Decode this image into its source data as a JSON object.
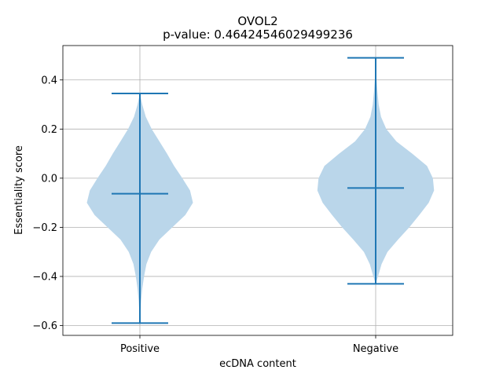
{
  "chart_data": {
    "type": "violin",
    "title": "OVOL2",
    "subtitle": "p-value: 0.46424546029499236",
    "xlabel": "ecDNA content",
    "ylabel": "Essentiality score",
    "categories": [
      "Positive",
      "Negative"
    ],
    "ylim": [
      -0.64,
      0.54
    ],
    "yticks": [
      -0.6,
      -0.4,
      -0.2,
      0.0,
      0.2,
      0.4
    ],
    "ytick_labels": [
      "−0.6",
      "−0.4",
      "−0.2",
      "0.0",
      "0.2",
      "0.4"
    ],
    "grid": true,
    "colors": {
      "body": "#bad6ea",
      "lines": "#1f77b4"
    },
    "violins": [
      {
        "category": "Positive",
        "min": -0.59,
        "max": 0.345,
        "median": -0.063,
        "density": [
          [
            -0.59,
            0.0
          ],
          [
            -0.55,
            0.01
          ],
          [
            -0.5,
            0.02
          ],
          [
            -0.45,
            0.04
          ],
          [
            -0.4,
            0.07
          ],
          [
            -0.35,
            0.11
          ],
          [
            -0.3,
            0.19
          ],
          [
            -0.25,
            0.33
          ],
          [
            -0.2,
            0.55
          ],
          [
            -0.15,
            0.77
          ],
          [
            -0.1,
            0.9
          ],
          [
            -0.05,
            0.85
          ],
          [
            0.0,
            0.72
          ],
          [
            0.05,
            0.58
          ],
          [
            0.1,
            0.46
          ],
          [
            0.15,
            0.33
          ],
          [
            0.2,
            0.2
          ],
          [
            0.25,
            0.1
          ],
          [
            0.3,
            0.04
          ],
          [
            0.345,
            0.0
          ]
        ]
      },
      {
        "category": "Negative",
        "min": -0.43,
        "max": 0.49,
        "median": -0.04,
        "density": [
          [
            -0.43,
            0.0
          ],
          [
            -0.4,
            0.04
          ],
          [
            -0.35,
            0.1
          ],
          [
            -0.3,
            0.2
          ],
          [
            -0.25,
            0.38
          ],
          [
            -0.2,
            0.57
          ],
          [
            -0.15,
            0.74
          ],
          [
            -0.1,
            0.9
          ],
          [
            -0.05,
            0.99
          ],
          [
            0.0,
            0.97
          ],
          [
            0.05,
            0.87
          ],
          [
            0.1,
            0.62
          ],
          [
            0.15,
            0.35
          ],
          [
            0.2,
            0.18
          ],
          [
            0.25,
            0.09
          ],
          [
            0.3,
            0.05
          ],
          [
            0.35,
            0.03
          ],
          [
            0.4,
            0.015
          ],
          [
            0.45,
            0.007
          ],
          [
            0.49,
            0.0
          ]
        ]
      }
    ]
  }
}
